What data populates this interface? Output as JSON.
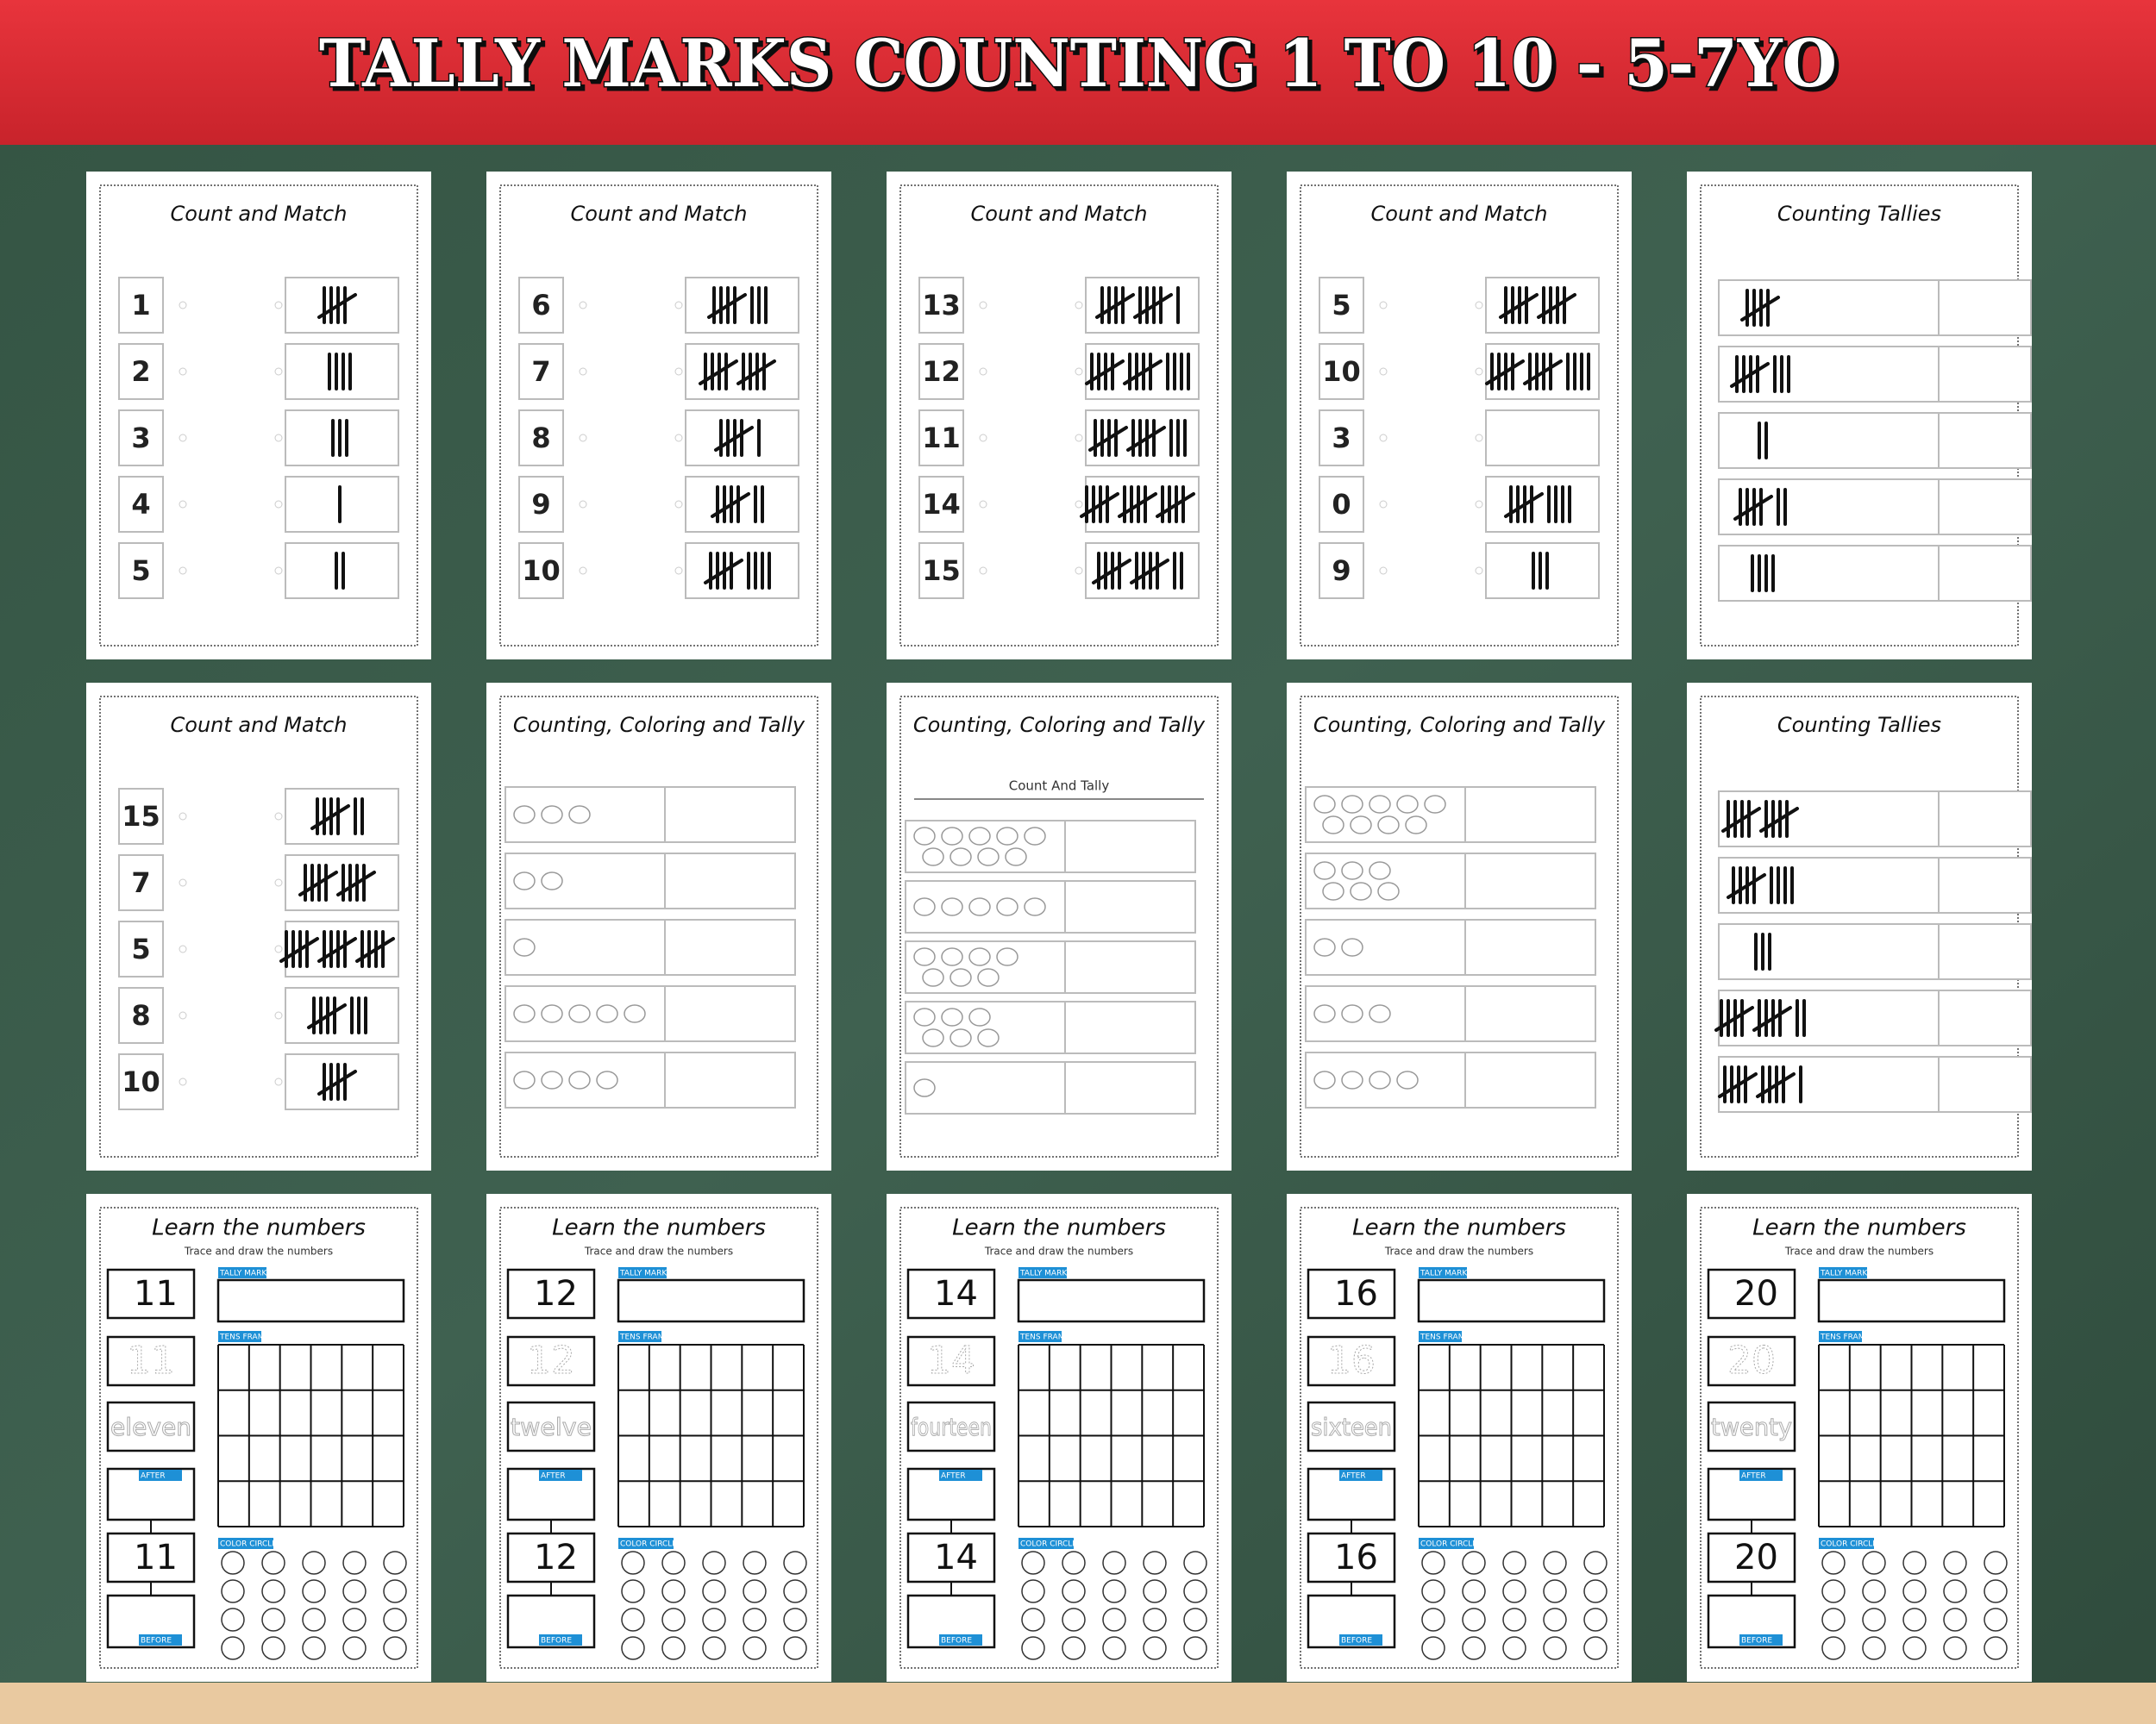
{
  "header": {
    "title": "TALLY MARKS COUNTING 1 TO 10 - 5-7YO"
  },
  "learn_labels": {
    "subtitle": "Trace and draw the numbers",
    "tally": "TALLY MARKS",
    "tens": "TENS FRAME",
    "after": "AFTER",
    "circles": "COLOR CIRCLES",
    "before": "BEFORE"
  },
  "sheets": [
    {
      "type": "match",
      "title": "Count and Match",
      "numbers": [
        1,
        2,
        3,
        4,
        5
      ],
      "tallies": [
        5,
        4,
        3,
        1,
        2
      ]
    },
    {
      "type": "match",
      "title": "Count and Match",
      "numbers": [
        6,
        7,
        8,
        9,
        10
      ],
      "tallies": [
        8,
        10,
        6,
        7,
        9
      ]
    },
    {
      "type": "match",
      "title": "Count and Match",
      "numbers": [
        13,
        12,
        11,
        14,
        15
      ],
      "tallies": [
        11,
        14,
        13,
        15,
        12
      ]
    },
    {
      "type": "match",
      "title": "Count and Match",
      "numbers": [
        5,
        10,
        3,
        0,
        9
      ],
      "tallies": [
        10,
        14,
        null,
        9,
        3
      ]
    },
    {
      "type": "tallies",
      "title": "Counting Tallies",
      "tallies": [
        5,
        8,
        2,
        7,
        4
      ]
    },
    {
      "type": "match",
      "title": "Count and Match",
      "numbers": [
        15,
        7,
        5,
        8,
        10
      ],
      "tallies": [
        7,
        10,
        15,
        8,
        5
      ]
    },
    {
      "type": "coloring",
      "title": "Counting, Coloring and Tally",
      "pictures": [
        3,
        2,
        1,
        5,
        4
      ]
    },
    {
      "type": "coloring",
      "title": "Counting, Coloring and Tally",
      "subtitle": "Count And Tally",
      "pictures": [
        9,
        5,
        7,
        6,
        1
      ]
    },
    {
      "type": "coloring",
      "title": "Counting, Coloring and Tally",
      "pictures": [
        9,
        6,
        2,
        3,
        4
      ]
    },
    {
      "type": "tallies",
      "title": "Counting Tallies",
      "tallies": [
        10,
        9,
        3,
        12,
        11
      ]
    },
    {
      "type": "learn",
      "title": "Learn the numbers",
      "number": 11,
      "word": "eleven"
    },
    {
      "type": "learn",
      "title": "Learn the numbers",
      "number": 12,
      "word": "twelve"
    },
    {
      "type": "learn",
      "title": "Learn the numbers",
      "number": 14,
      "word": "fourteen"
    },
    {
      "type": "learn",
      "title": "Learn the numbers",
      "number": 16,
      "word": "sixteen"
    },
    {
      "type": "learn",
      "title": "Learn the numbers",
      "number": 20,
      "word": "twenty"
    }
  ]
}
